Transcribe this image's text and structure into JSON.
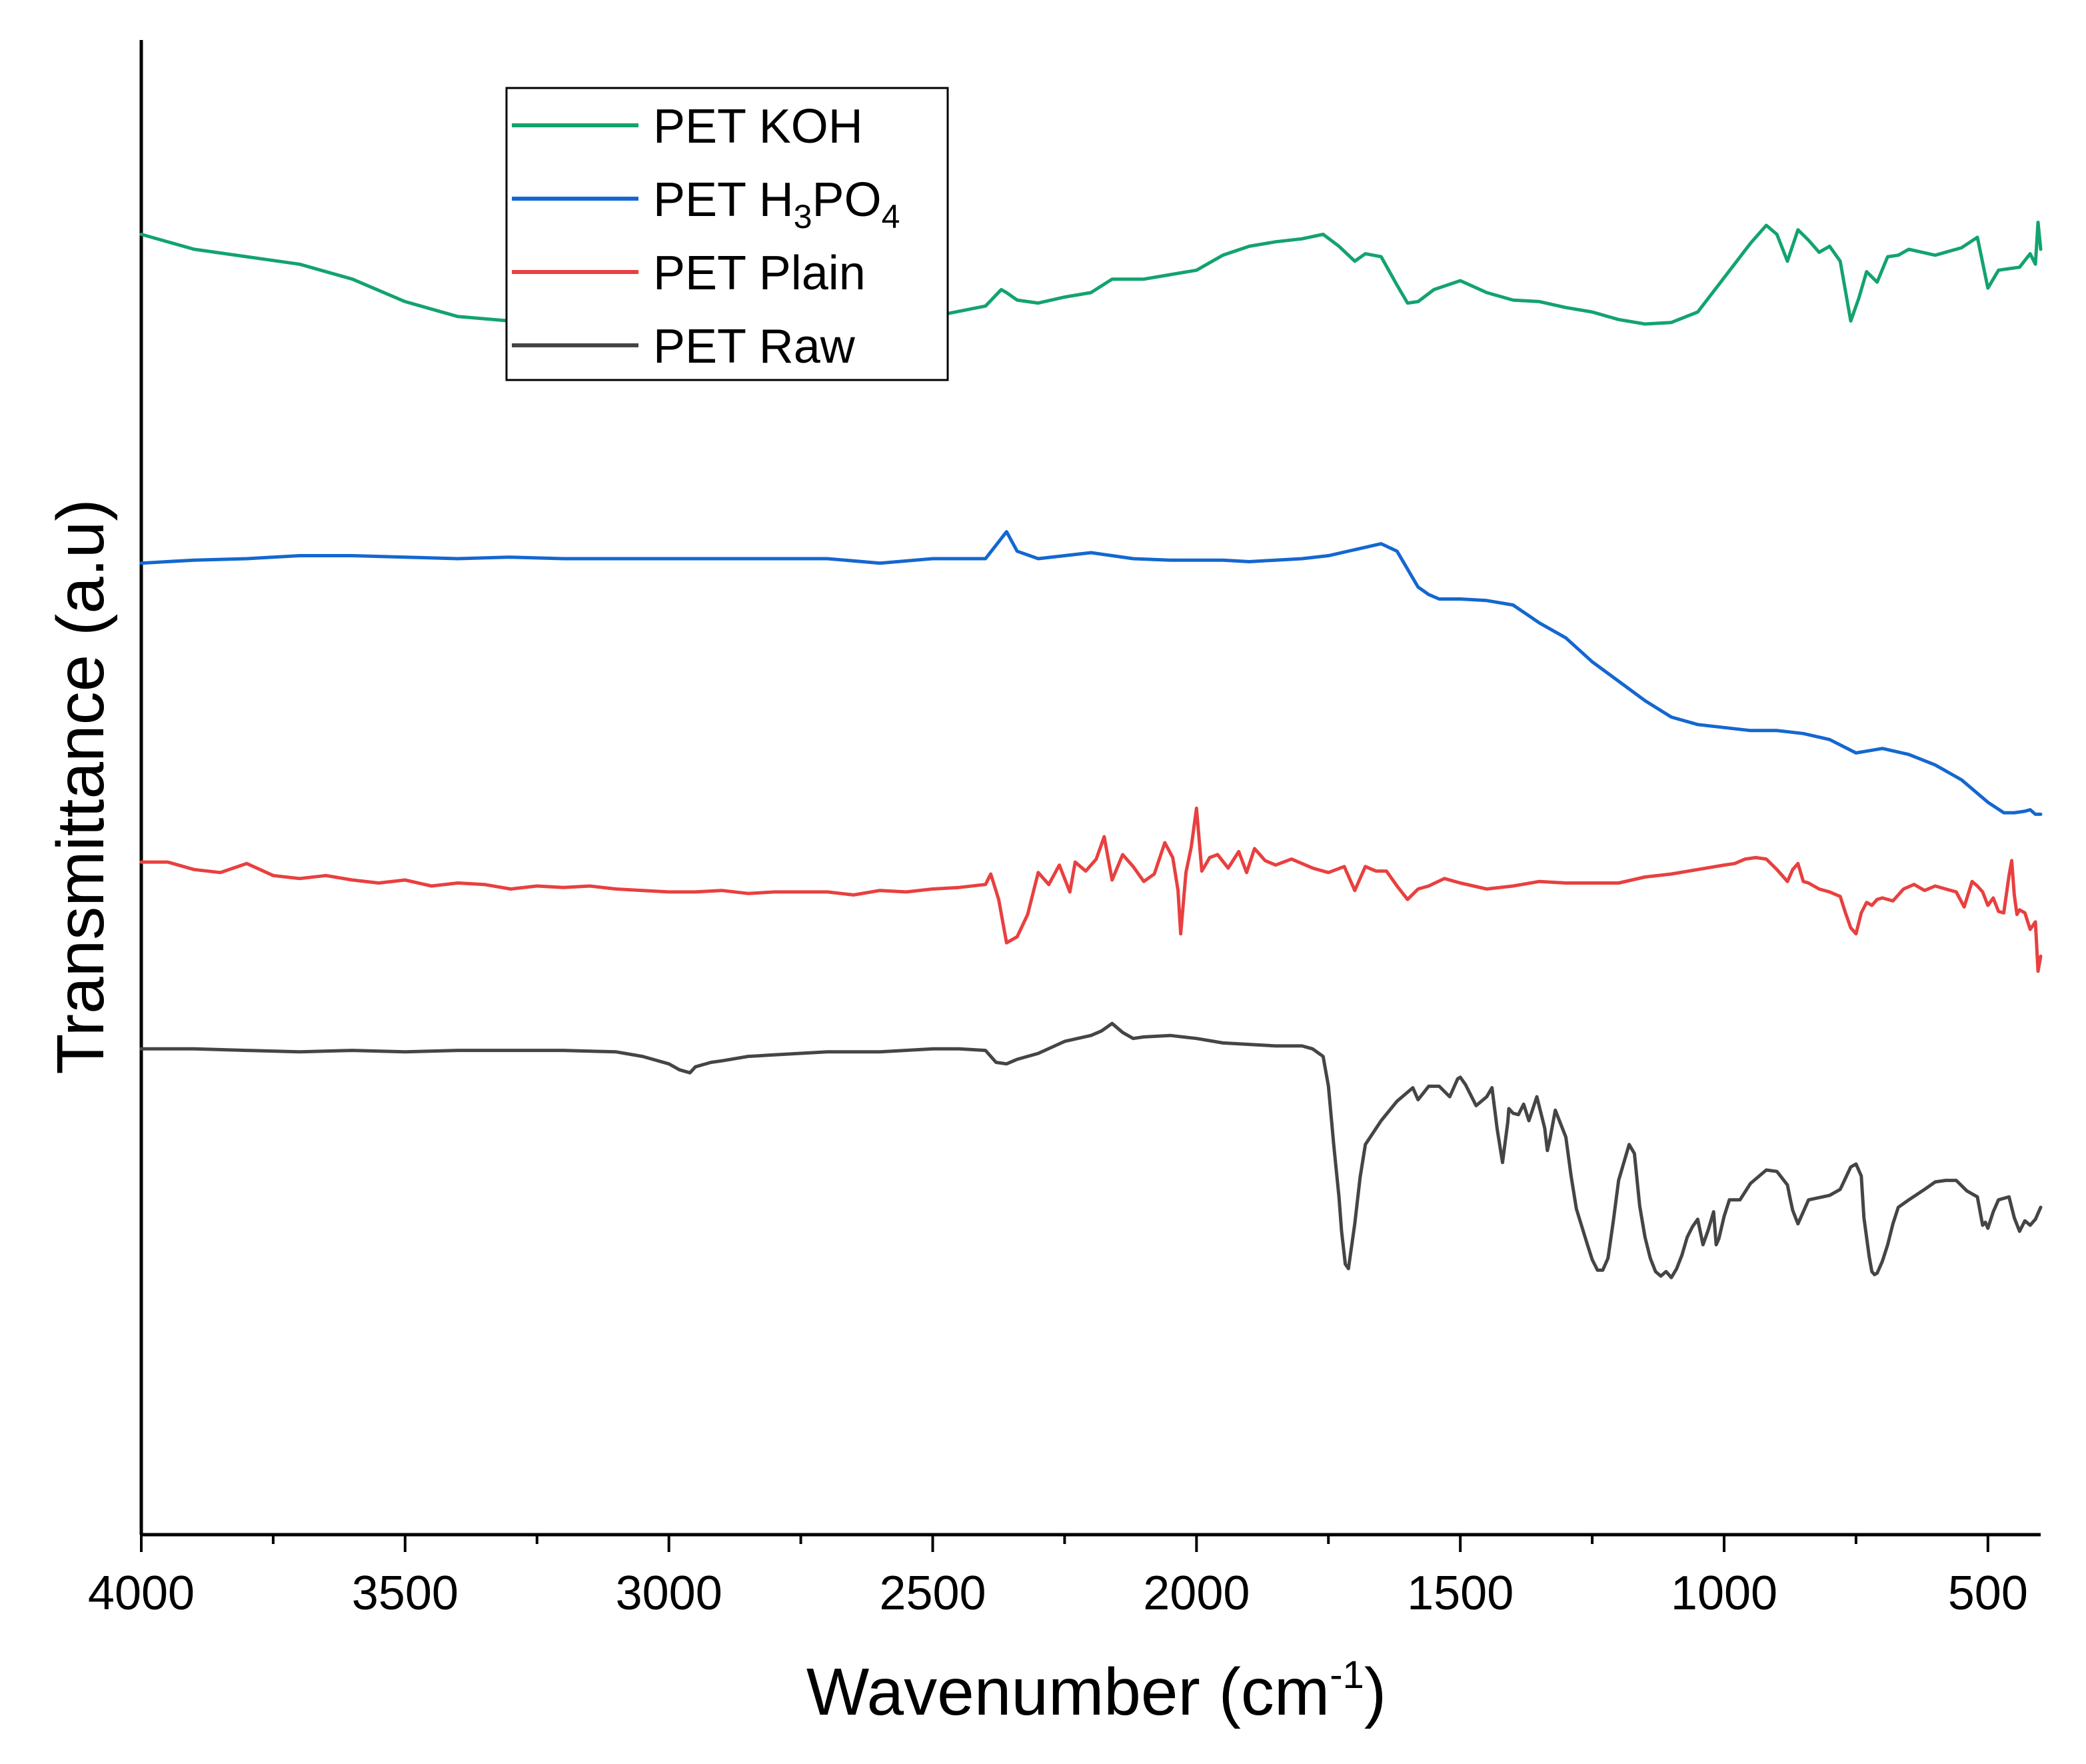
{
  "chart_data": {
    "type": "line",
    "title": "",
    "xlabel": "Wavenumber (cm",
    "xlabel_sup": "-1",
    "xlabel_close": ")",
    "ylabel": "Transmittance (a.u)",
    "xlim": [
      4000,
      400
    ],
    "x_reversed": true,
    "ylim": [
      0,
      100
    ],
    "y_ticks_shown": false,
    "grid": false,
    "legend_position": "top-left",
    "x_ticks": [
      "4000",
      "3500",
      "3000",
      "2500",
      "2000",
      "1500",
      "1000",
      "500"
    ],
    "x_tick_values": [
      4000,
      3500,
      3000,
      2500,
      2000,
      1500,
      1000,
      500
    ],
    "series": [
      {
        "name": "PET KOH",
        "legend_parts": [
          {
            "t": "PET KOH"
          }
        ],
        "color": "#13a36e",
        "x": [
          4000,
          3900,
          3800,
          3700,
          3600,
          3500,
          3400,
          3300,
          3200,
          3100,
          3000,
          2950,
          2900,
          2800,
          2700,
          2600,
          2500,
          2400,
          2370,
          2360,
          2340,
          2300,
          2250,
          2200,
          2160,
          2100,
          2050,
          2000,
          1950,
          1900,
          1850,
          1800,
          1760,
          1730,
          1700,
          1680,
          1650,
          1620,
          1600,
          1580,
          1550,
          1500,
          1450,
          1400,
          1350,
          1300,
          1250,
          1200,
          1150,
          1100,
          1050,
          1000,
          950,
          920,
          900,
          880,
          860,
          840,
          820,
          800,
          780,
          760,
          745,
          730,
          710,
          690,
          670,
          650,
          600,
          550,
          520,
          500,
          480,
          460,
          440,
          420,
          410,
          405,
          400
        ],
        "values": [
          87,
          86,
          85.5,
          85,
          84,
          82.5,
          81.5,
          81.2,
          81.2,
          80.9,
          80.8,
          80.6,
          80.3,
          80.5,
          80.8,
          81.1,
          81.5,
          82.2,
          83.3,
          83.1,
          82.6,
          82.4,
          82.8,
          83.1,
          84,
          84,
          84.3,
          84.6,
          85.6,
          86.2,
          86.5,
          86.7,
          87,
          86.2,
          85.2,
          85.7,
          85.5,
          83.6,
          82.4,
          82.5,
          83.3,
          83.9,
          83.1,
          82.6,
          82.5,
          82.1,
          81.8,
          81.3,
          81,
          81.1,
          81.8,
          84.1,
          86.4,
          87.6,
          87,
          85.2,
          87.3,
          86.6,
          85.8,
          86.2,
          85.2,
          81.2,
          82.7,
          84.5,
          83.8,
          85.5,
          85.6,
          86,
          85.6,
          86.1,
          86.8,
          83.4,
          84.6,
          84.7,
          84.8,
          85.7,
          85,
          87.8,
          86
        ]
      },
      {
        "name": "PET H3PO4",
        "legend_parts": [
          {
            "t": "PET H"
          },
          {
            "t": "3",
            "s": "sub"
          },
          {
            "t": "PO"
          },
          {
            "t": "4",
            "s": "sub"
          }
        ],
        "color": "#1467d0",
        "x": [
          4000,
          3900,
          3800,
          3700,
          3600,
          3500,
          3400,
          3300,
          3200,
          3100,
          3000,
          2900,
          2800,
          2700,
          2600,
          2500,
          2400,
          2380,
          2360,
          2340,
          2300,
          2250,
          2200,
          2160,
          2120,
          2050,
          2000,
          1950,
          1900,
          1850,
          1800,
          1750,
          1700,
          1650,
          1620,
          1600,
          1580,
          1560,
          1540,
          1500,
          1450,
          1400,
          1350,
          1300,
          1250,
          1200,
          1150,
          1100,
          1050,
          1000,
          950,
          900,
          850,
          800,
          750,
          700,
          650,
          600,
          550,
          500,
          470,
          450,
          430,
          420,
          410,
          400
        ],
        "values": [
          65,
          65.2,
          65.3,
          65.5,
          65.5,
          65.4,
          65.3,
          65.4,
          65.3,
          65.3,
          65.3,
          65.3,
          65.3,
          65.3,
          65,
          65.3,
          65.3,
          66.2,
          67.1,
          65.8,
          65.3,
          65.5,
          65.7,
          65.5,
          65.3,
          65.2,
          65.2,
          65.2,
          65.1,
          65.2,
          65.3,
          65.5,
          65.9,
          66.3,
          65.8,
          64.6,
          63.4,
          62.9,
          62.6,
          62.6,
          62.5,
          62.2,
          61,
          60,
          58.4,
          57.1,
          55.8,
          54.7,
          54.2,
          54,
          53.8,
          53.8,
          53.6,
          53.2,
          52.3,
          52.6,
          52.2,
          51.5,
          50.5,
          49,
          48.3,
          48.3,
          48.4,
          48.5,
          48.2,
          48.2
        ]
      },
      {
        "name": "PET Plain",
        "legend_parts": [
          {
            "t": "PET Plain"
          }
        ],
        "color": "#e8403f",
        "x": [
          4000,
          3950,
          3900,
          3850,
          3800,
          3750,
          3700,
          3650,
          3600,
          3550,
          3500,
          3450,
          3400,
          3350,
          3300,
          3250,
          3200,
          3150,
          3100,
          3050,
          3000,
          2950,
          2900,
          2850,
          2800,
          2750,
          2700,
          2650,
          2600,
          2550,
          2500,
          2450,
          2400,
          2390,
          2375,
          2360,
          2340,
          2320,
          2300,
          2280,
          2260,
          2240,
          2230,
          2210,
          2190,
          2175,
          2160,
          2140,
          2120,
          2100,
          2080,
          2060,
          2045,
          2035,
          2030,
          2020,
          2010,
          2000,
          1990,
          1975,
          1960,
          1940,
          1920,
          1905,
          1890,
          1870,
          1850,
          1820,
          1780,
          1750,
          1720,
          1700,
          1680,
          1660,
          1640,
          1620,
          1600,
          1580,
          1560,
          1530,
          1500,
          1450,
          1400,
          1350,
          1300,
          1250,
          1200,
          1150,
          1100,
          1050,
          1000,
          980,
          960,
          940,
          920,
          900,
          880,
          870,
          860,
          850,
          840,
          820,
          800,
          780,
          770,
          760,
          750,
          740,
          730,
          720,
          710,
          700,
          680,
          660,
          640,
          620,
          600,
          580,
          560,
          545,
          530,
          520,
          510,
          500,
          490,
          480,
          470,
          460,
          455,
          450,
          445,
          440,
          430,
          420,
          410,
          405,
          400
        ],
        "values": [
          45,
          45,
          44.5,
          44.3,
          44.9,
          44.1,
          43.9,
          44.1,
          43.8,
          43.6,
          43.8,
          43.4,
          43.6,
          43.5,
          43.2,
          43.4,
          43.3,
          43.4,
          43.2,
          43.1,
          43,
          43,
          43.1,
          42.9,
          43,
          43,
          43,
          42.8,
          43.1,
          43,
          43.2,
          43.3,
          43.5,
          44.2,
          42.5,
          39.6,
          40,
          41.5,
          44.3,
          43.5,
          44.8,
          43,
          45,
          44.4,
          45.2,
          46.7,
          43.8,
          45.5,
          44.7,
          43.7,
          44.2,
          46.3,
          45.3,
          43.1,
          40.2,
          44.3,
          46,
          48.6,
          44.4,
          45.3,
          45.5,
          44.6,
          45.7,
          44.3,
          45.9,
          45.1,
          44.8,
          45.2,
          44.6,
          44.3,
          44.7,
          43.1,
          44.7,
          44.4,
          44.4,
          43.4,
          42.5,
          43.2,
          43.4,
          43.9,
          43.6,
          43.2,
          43.4,
          43.7,
          43.6,
          43.6,
          43.6,
          44,
          44.2,
          44.5,
          44.8,
          44.9,
          45.2,
          45.3,
          45.2,
          44.5,
          43.7,
          44.5,
          44.9,
          43.7,
          43.6,
          43.2,
          43,
          42.7,
          41.6,
          40.6,
          40.2,
          41.6,
          42.3,
          42.1,
          42.5,
          42.6,
          42.4,
          43.2,
          43.5,
          43.1,
          43.4,
          43.2,
          43,
          42,
          43.7,
          43.4,
          43,
          42.1,
          42.6,
          41.7,
          41.6,
          44.1,
          45.1,
          42.8,
          41.5,
          41.8,
          41.6,
          40.5,
          41,
          37.7,
          38.7
        ]
      },
      {
        "name": "PET Raw",
        "legend_parts": [
          {
            "t": "PET Raw"
          }
        ],
        "color": "#454545",
        "x": [
          4000,
          3900,
          3800,
          3700,
          3600,
          3500,
          3400,
          3300,
          3200,
          3100,
          3050,
          3000,
          2980,
          2960,
          2950,
          2940,
          2920,
          2900,
          2850,
          2800,
          2700,
          2600,
          2500,
          2450,
          2400,
          2380,
          2360,
          2340,
          2300,
          2250,
          2200,
          2180,
          2160,
          2140,
          2120,
          2100,
          2050,
          2000,
          1950,
          1900,
          1850,
          1800,
          1780,
          1760,
          1750,
          1740,
          1730,
          1725,
          1718,
          1712,
          1700,
          1690,
          1680,
          1650,
          1620,
          1600,
          1590,
          1580,
          1560,
          1540,
          1520,
          1505,
          1500,
          1490,
          1470,
          1450,
          1440,
          1430,
          1420,
          1410,
          1408,
          1400,
          1390,
          1380,
          1370,
          1355,
          1340,
          1335,
          1330,
          1320,
          1300,
          1290,
          1280,
          1260,
          1250,
          1240,
          1230,
          1220,
          1210,
          1200,
          1180,
          1170,
          1160,
          1150,
          1140,
          1130,
          1120,
          1110,
          1100,
          1090,
          1080,
          1070,
          1060,
          1050,
          1040,
          1030,
          1020,
          1015,
          1010,
          1000,
          990,
          970,
          950,
          920,
          900,
          880,
          875,
          870,
          860,
          850,
          840,
          800,
          780,
          760,
          750,
          740,
          735,
          725,
          720,
          715,
          710,
          700,
          690,
          680,
          670,
          650,
          620,
          600,
          580,
          560,
          540,
          520,
          510,
          505,
          500,
          490,
          480,
          470,
          460,
          450,
          440,
          430,
          420,
          410,
          400
        ],
        "values": [
          32.5,
          32.5,
          32.4,
          32.3,
          32.4,
          32.3,
          32.4,
          32.4,
          32.4,
          32.3,
          32,
          31.5,
          31.1,
          30.9,
          31.3,
          31.4,
          31.6,
          31.7,
          32,
          32.1,
          32.3,
          32.3,
          32.5,
          32.5,
          32.4,
          31.6,
          31.5,
          31.8,
          32.2,
          33,
          33.4,
          33.7,
          34.2,
          33.6,
          33.2,
          33.3,
          33.4,
          33.2,
          32.9,
          32.8,
          32.7,
          32.7,
          32.5,
          32,
          30,
          26.1,
          22.6,
          20.3,
          18.1,
          17.8,
          20.8,
          23.9,
          26.1,
          27.7,
          29,
          29.6,
          29.9,
          29.1,
          30,
          30,
          29.3,
          30.5,
          30.6,
          30.1,
          28.7,
          29.3,
          29.9,
          27.1,
          24.9,
          27.6,
          28.5,
          28.2,
          28.1,
          28.8,
          27.7,
          29.3,
          27.2,
          25.7,
          26.5,
          28.4,
          26.6,
          24,
          21.8,
          19.5,
          18.4,
          17.7,
          17.7,
          18.5,
          21,
          23.7,
          26.1,
          25.5,
          22,
          19.9,
          18.5,
          17.6,
          17.3,
          17.6,
          17.2,
          17.8,
          18.7,
          19.9,
          20.6,
          21.1,
          19.4,
          20.4,
          21.6,
          19.4,
          19.8,
          21.3,
          22.4,
          22.4,
          23.5,
          24.4,
          24.3,
          23.4,
          22.5,
          21.7,
          20.8,
          21.6,
          22.4,
          22.7,
          23.1,
          24.6,
          24.8,
          24,
          21.2,
          18.6,
          17.6,
          17.4,
          17.5,
          18.3,
          19.4,
          20.8,
          21.9,
          22.4,
          23.1,
          23.6,
          23.7,
          23.7,
          23,
          22.6,
          20.7,
          20.9,
          20.5,
          21.6,
          22.4,
          22.5,
          22.6,
          21.2,
          20.3,
          21,
          20.7,
          21.1,
          21.9
        ]
      }
    ]
  }
}
